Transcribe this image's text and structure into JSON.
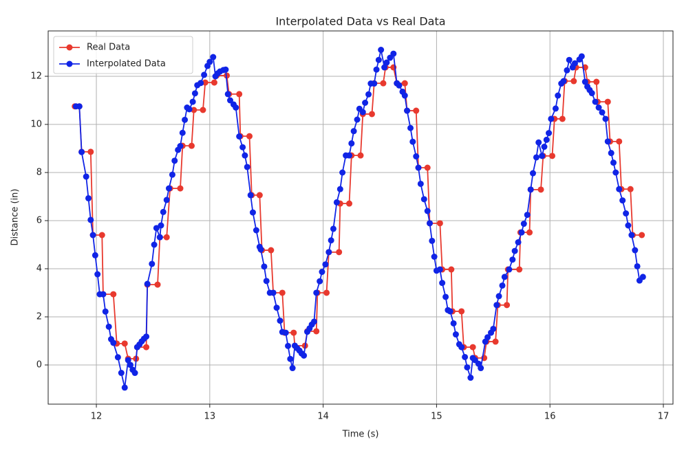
{
  "chart_data": {
    "type": "line",
    "title": "Interpolated Data vs Real Data",
    "x_label": "Time (s)",
    "y_label": "Distance (in)",
    "xlim": [
      11.575,
      17.085
    ],
    "xticks": [
      12,
      13,
      14,
      15,
      16,
      17
    ],
    "ylim": [
      -1.629,
      13.886
    ],
    "yticks": [
      0,
      2,
      4,
      6,
      8,
      10,
      12
    ],
    "grid": true,
    "legend": "upper left",
    "series": [
      {
        "name": "Real Data",
        "color": "#e8392e",
        "x": [
          11.81,
          11.85,
          11.87,
          11.95,
          11.97,
          12.05,
          12.06,
          12.15,
          12.18,
          12.25,
          12.28,
          12.35,
          12.36,
          12.44,
          12.45,
          12.54,
          12.56,
          12.62,
          12.65,
          12.74,
          12.76,
          12.84,
          12.86,
          12.94,
          12.96,
          13.04,
          13.06,
          13.15,
          13.17,
          13.26,
          13.27,
          13.35,
          13.37,
          13.44,
          13.46,
          13.54,
          13.56,
          13.64,
          13.66,
          13.74,
          13.75,
          13.84,
          13.86,
          13.94,
          13.95,
          14.03,
          14.05,
          14.14,
          14.15,
          14.23,
          14.25,
          14.33,
          14.35,
          14.43,
          14.45,
          14.53,
          14.55,
          14.62,
          14.65,
          14.72,
          14.74,
          14.82,
          14.84,
          14.92,
          14.94,
          15.03,
          15.05,
          15.13,
          15.14,
          15.22,
          15.24,
          15.32,
          15.34,
          15.42,
          15.44,
          15.52,
          15.54,
          15.62,
          15.63,
          15.73,
          15.74,
          15.82,
          15.83,
          15.92,
          15.94,
          16.02,
          16.04,
          16.11,
          16.13,
          16.21,
          16.23,
          16.31,
          16.33,
          16.41,
          16.42,
          16.51,
          16.53,
          16.61,
          16.63,
          16.71,
          16.73,
          16.81
        ],
        "values": [
          10.75,
          10.75,
          8.86,
          8.86,
          5.4,
          5.4,
          2.94,
          2.94,
          0.89,
          0.89,
          0.26,
          0.26,
          0.74,
          0.74,
          3.34,
          3.34,
          5.31,
          5.31,
          7.34,
          7.34,
          9.11,
          9.11,
          10.6,
          10.6,
          11.74,
          11.74,
          12.03,
          12.03,
          11.26,
          11.26,
          9.51,
          9.51,
          7.06,
          7.06,
          4.77,
          4.77,
          3.0,
          3.0,
          1.34,
          1.34,
          0.8,
          0.8,
          1.4,
          1.4,
          3.0,
          3.0,
          4.69,
          4.69,
          6.71,
          6.71,
          8.71,
          8.71,
          10.43,
          10.43,
          11.71,
          11.71,
          12.37,
          12.37,
          11.71,
          11.71,
          10.57,
          10.57,
          8.2,
          8.2,
          5.89,
          5.89,
          3.97,
          3.97,
          2.23,
          2.23,
          0.74,
          0.74,
          0.29,
          0.29,
          0.97,
          0.97,
          2.49,
          2.49,
          3.97,
          3.97,
          5.51,
          5.51,
          7.29,
          7.29,
          8.69,
          8.69,
          10.23,
          10.23,
          11.8,
          11.8,
          12.37,
          12.37,
          11.77,
          11.77,
          10.94,
          10.94,
          9.29,
          9.29,
          7.31,
          7.31,
          5.4,
          5.4
        ]
      },
      {
        "name": "Interpolated Data",
        "color": "#1024e6",
        "x": [
          11.82,
          11.85,
          11.87,
          11.91,
          11.93,
          11.95,
          11.97,
          11.99,
          12.01,
          12.03,
          12.06,
          12.08,
          12.11,
          12.13,
          12.15,
          12.19,
          12.22,
          12.25,
          12.28,
          12.3,
          12.32,
          12.34,
          12.36,
          12.38,
          12.4,
          12.42,
          12.44,
          12.45,
          12.49,
          12.51,
          12.53,
          12.56,
          12.57,
          12.59,
          12.62,
          12.64,
          12.67,
          12.69,
          12.72,
          12.74,
          12.76,
          12.78,
          12.8,
          12.82,
          12.85,
          12.87,
          12.89,
          12.92,
          12.95,
          12.98,
          13.0,
          13.03,
          13.05,
          13.07,
          13.09,
          13.12,
          13.14,
          13.16,
          13.18,
          13.21,
          13.23,
          13.26,
          13.29,
          13.31,
          13.33,
          13.36,
          13.38,
          13.41,
          13.44,
          13.45,
          13.48,
          13.5,
          13.53,
          13.56,
          13.59,
          13.62,
          13.64,
          13.67,
          13.69,
          13.71,
          13.73,
          13.75,
          13.77,
          13.79,
          13.81,
          13.83,
          13.86,
          13.88,
          13.9,
          13.92,
          13.94,
          13.97,
          13.99,
          14.02,
          14.05,
          14.07,
          14.09,
          14.12,
          14.15,
          14.17,
          14.2,
          14.23,
          14.25,
          14.27,
          14.3,
          14.32,
          14.35,
          14.37,
          14.4,
          14.42,
          14.45,
          14.47,
          14.49,
          14.51,
          14.54,
          14.56,
          14.59,
          14.62,
          14.65,
          14.67,
          14.7,
          14.72,
          14.74,
          14.77,
          14.79,
          14.82,
          14.84,
          14.86,
          14.89,
          14.92,
          14.94,
          14.96,
          14.98,
          15.0,
          15.03,
          15.05,
          15.08,
          15.1,
          15.12,
          15.15,
          15.17,
          15.2,
          15.22,
          15.25,
          15.27,
          15.3,
          15.32,
          15.34,
          15.37,
          15.39,
          15.43,
          15.45,
          15.48,
          15.5,
          15.53,
          15.55,
          15.58,
          15.6,
          15.64,
          15.67,
          15.69,
          15.72,
          15.75,
          15.77,
          15.8,
          15.83,
          15.85,
          15.88,
          15.9,
          15.93,
          15.95,
          15.97,
          15.99,
          16.01,
          16.05,
          16.07,
          16.1,
          16.12,
          16.15,
          16.17,
          16.2,
          16.22,
          16.26,
          16.28,
          16.31,
          16.33,
          16.35,
          16.37,
          16.4,
          16.43,
          16.46,
          16.49,
          16.51,
          16.54,
          16.56,
          16.58,
          16.61,
          16.64,
          16.67,
          16.69,
          16.72,
          16.75,
          16.77,
          16.79,
          16.82
        ],
        "values": [
          10.75,
          10.75,
          8.85,
          7.83,
          6.93,
          6.03,
          5.4,
          4.56,
          3.77,
          2.94,
          2.94,
          2.22,
          1.59,
          1.07,
          0.92,
          0.32,
          -0.33,
          -0.94,
          0.2,
          0.0,
          -0.2,
          -0.33,
          0.74,
          0.85,
          0.98,
          1.09,
          1.18,
          3.37,
          4.2,
          5.0,
          5.69,
          5.31,
          5.8,
          6.36,
          6.86,
          7.34,
          7.91,
          8.49,
          8.94,
          9.1,
          9.65,
          10.19,
          10.7,
          10.63,
          10.94,
          11.29,
          11.63,
          11.72,
          12.06,
          12.43,
          12.6,
          12.8,
          12.0,
          12.12,
          12.2,
          12.26,
          12.28,
          11.26,
          11.0,
          10.83,
          10.7,
          9.5,
          9.05,
          8.71,
          8.23,
          7.06,
          6.34,
          5.6,
          4.91,
          4.8,
          4.09,
          3.49,
          3.0,
          3.0,
          2.38,
          1.84,
          1.37,
          1.34,
          0.79,
          0.25,
          -0.13,
          0.8,
          0.7,
          0.6,
          0.48,
          0.39,
          1.38,
          1.52,
          1.68,
          1.8,
          3.0,
          3.48,
          3.87,
          4.18,
          4.69,
          5.18,
          5.66,
          6.76,
          7.31,
          8.0,
          8.71,
          8.71,
          9.21,
          9.72,
          10.2,
          10.65,
          10.51,
          10.9,
          11.25,
          11.7,
          11.7,
          12.28,
          12.68,
          13.1,
          12.37,
          12.57,
          12.77,
          12.94,
          11.71,
          11.62,
          11.36,
          11.2,
          10.57,
          9.85,
          9.28,
          8.67,
          8.2,
          7.53,
          6.89,
          6.4,
          5.89,
          5.16,
          4.5,
          3.92,
          3.97,
          3.41,
          2.83,
          2.28,
          2.23,
          1.73,
          1.27,
          0.86,
          0.74,
          0.33,
          -0.1,
          -0.53,
          0.29,
          0.2,
          0.05,
          -0.13,
          0.97,
          1.15,
          1.34,
          1.5,
          2.49,
          2.86,
          3.3,
          3.66,
          3.97,
          4.38,
          4.74,
          5.1,
          5.51,
          5.87,
          6.24,
          7.29,
          7.97,
          8.63,
          9.25,
          8.69,
          9.07,
          9.36,
          9.64,
          10.23,
          10.66,
          11.2,
          11.7,
          11.8,
          12.25,
          12.68,
          12.37,
          12.54,
          12.7,
          12.83,
          11.77,
          11.57,
          11.43,
          11.3,
          10.94,
          10.7,
          10.5,
          10.23,
          9.29,
          8.81,
          8.41,
          8.0,
          7.31,
          6.84,
          6.3,
          5.8,
          5.4,
          4.77,
          4.1,
          3.51,
          3.66
        ]
      }
    ]
  }
}
